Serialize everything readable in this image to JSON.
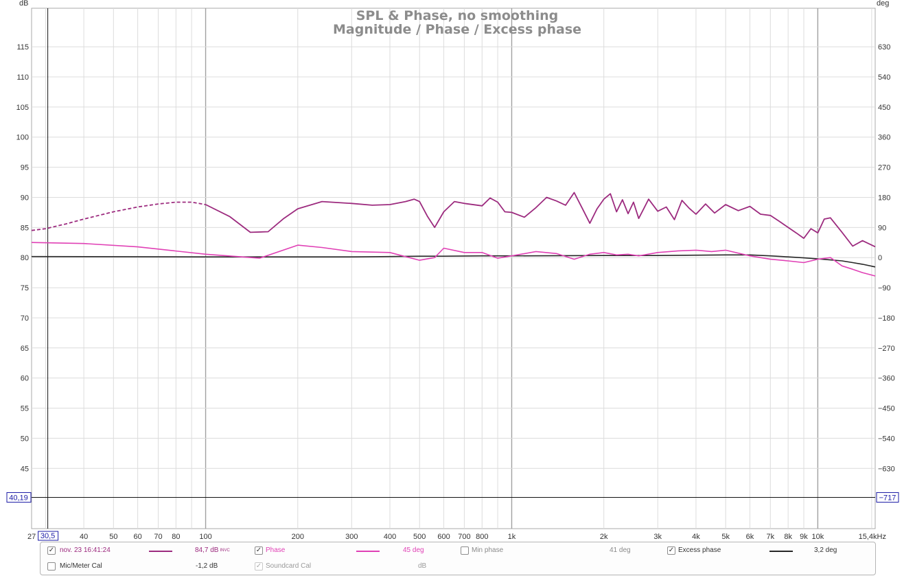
{
  "chart_data": {
    "type": "line",
    "title": "SPL & Phase, no smoothing",
    "subtitle": "Magnitude / Phase / Excess phase",
    "left_unit": "dB",
    "right_unit": "deg",
    "xscale": "log",
    "xlim": [
      27,
      15400
    ],
    "ylim_left": [
      35,
      121.4
    ],
    "ylim_right": [
      -810,
      745
    ],
    "grid": true,
    "x_ticks": [
      {
        "label": "27",
        "value": 27
      },
      {
        "label": "40",
        "value": 40
      },
      {
        "label": "50",
        "value": 50
      },
      {
        "label": "60",
        "value": 60
      },
      {
        "label": "70",
        "value": 70
      },
      {
        "label": "80",
        "value": 80
      },
      {
        "label": "100",
        "value": 100
      },
      {
        "label": "200",
        "value": 200
      },
      {
        "label": "300",
        "value": 300
      },
      {
        "label": "400",
        "value": 400
      },
      {
        "label": "500",
        "value": 500
      },
      {
        "label": "600",
        "value": 600
      },
      {
        "label": "700",
        "value": 700
      },
      {
        "label": "800",
        "value": 800
      },
      {
        "label": "1k",
        "value": 1000
      },
      {
        "label": "2k",
        "value": 2000
      },
      {
        "label": "3k",
        "value": 3000
      },
      {
        "label": "4k",
        "value": 4000
      },
      {
        "label": "5k",
        "value": 5000
      },
      {
        "label": "6k",
        "value": 6000
      },
      {
        "label": "7k",
        "value": 7000
      },
      {
        "label": "8k",
        "value": 8000
      },
      {
        "label": "9k",
        "value": 9000
      },
      {
        "label": "10k",
        "value": 10000
      },
      {
        "label": "15,4kHz",
        "value": 15400
      }
    ],
    "y_left_ticks": [
      45,
      50,
      55,
      60,
      65,
      70,
      75,
      80,
      85,
      90,
      95,
      100,
      105,
      110,
      115
    ],
    "y_right_ticks": [
      {
        "label": "630",
        "value": 630
      },
      {
        "label": "540",
        "value": 540
      },
      {
        "label": "450",
        "value": 450
      },
      {
        "label": "360",
        "value": 360
      },
      {
        "label": "270",
        "value": 270
      },
      {
        "label": "180",
        "value": 180
      },
      {
        "label": "90",
        "value": 90
      },
      {
        "label": "0",
        "value": 0
      },
      {
        "label": "-90",
        "value": -90
      },
      {
        "label": "-180",
        "value": -180
      },
      {
        "label": "-270",
        "value": -270
      },
      {
        "label": "-360",
        "value": -360
      },
      {
        "label": "-450",
        "value": -450
      },
      {
        "label": "-540",
        "value": -540
      },
      {
        "label": "-630",
        "value": -630
      }
    ],
    "cursor": {
      "x": 30.5,
      "x_label": "30,5",
      "y_left_label": "40,19",
      "y_right_label": "-717",
      "y_left_value": 40.19
    },
    "series": [
      {
        "name": "nov. 23 16:41:24",
        "axis": "left",
        "color": "#9c2a7e",
        "dashed_below": 100,
        "x": [
          27,
          30,
          35,
          40,
          50,
          60,
          70,
          80,
          90,
          100,
          120,
          140,
          160,
          180,
          200,
          240,
          300,
          350,
          400,
          450,
          480,
          500,
          530,
          560,
          600,
          650,
          700,
          800,
          850,
          900,
          950,
          1000,
          1100,
          1200,
          1300,
          1400,
          1500,
          1600,
          1700,
          1800,
          1900,
          2000,
          2100,
          2200,
          2300,
          2400,
          2500,
          2600,
          2700,
          2800,
          3000,
          3200,
          3400,
          3600,
          3800,
          4000,
          4300,
          4600,
          5000,
          5500,
          6000,
          6500,
          7000,
          7500,
          8000,
          8500,
          9000,
          9500,
          10000,
          10500,
          11000,
          12000,
          13000,
          14000,
          15400
        ],
        "y": [
          84.5,
          84.8,
          85.6,
          86.4,
          87.6,
          88.4,
          88.9,
          89.2,
          89.2,
          88.8,
          86.8,
          84.2,
          84.3,
          86.5,
          88.1,
          89.3,
          89.0,
          88.7,
          88.8,
          89.3,
          89.7,
          89.3,
          86.9,
          85.0,
          87.6,
          89.3,
          89.0,
          88.6,
          89.9,
          89.2,
          87.6,
          87.5,
          86.7,
          88.3,
          90.0,
          89.4,
          88.7,
          90.8,
          88.2,
          85.7,
          88.1,
          89.7,
          90.6,
          87.6,
          89.6,
          87.3,
          89.2,
          86.5,
          88.1,
          89.7,
          87.7,
          88.4,
          86.3,
          89.5,
          88.2,
          87.2,
          88.9,
          87.4,
          88.8,
          87.8,
          88.5,
          87.2,
          87.0,
          86.0,
          85.0,
          84.1,
          83.2,
          84.8,
          84.1,
          86.4,
          86.6,
          84.2,
          81.9,
          82.8,
          81.8
        ]
      },
      {
        "name": "Phase",
        "axis": "right",
        "color": "#e040b5",
        "x": [
          27,
          40,
          60,
          100,
          150,
          200,
          240,
          300,
          400,
          500,
          560,
          600,
          700,
          800,
          900,
          1000,
          1200,
          1400,
          1600,
          1800,
          2000,
          2200,
          2400,
          2600,
          3000,
          3500,
          4000,
          4500,
          5000,
          6000,
          7000,
          8000,
          9000,
          10000,
          11000,
          12000,
          13000,
          14000,
          15400
        ],
        "y": [
          45,
          42,
          32,
          10,
          -2,
          37,
          30,
          18,
          15,
          -8,
          0,
          28,
          15,
          15,
          -2,
          5,
          18,
          12,
          -5,
          10,
          15,
          8,
          10,
          5,
          15,
          20,
          22,
          18,
          22,
          5,
          -5,
          -10,
          -15,
          -5,
          0,
          -25,
          -35,
          -45,
          -55
        ]
      },
      {
        "name": "Min phase",
        "axis": "right",
        "color": "#9a9a9a",
        "visible": false,
        "x": [],
        "y": []
      },
      {
        "name": "Excess phase",
        "axis": "right",
        "color": "#262626",
        "x": [
          27,
          100,
          200,
          300,
          400,
          500,
          600,
          800,
          1000,
          2000,
          3000,
          4000,
          5000,
          6000,
          7000,
          8000,
          9000,
          10000,
          11000,
          12000,
          13000,
          14000,
          15400
        ],
        "y": [
          3,
          2,
          2,
          2,
          3,
          4,
          4,
          5,
          5,
          6,
          6,
          7,
          8,
          8,
          5,
          2,
          -1,
          -4,
          -7,
          -10,
          -15,
          -20,
          -28
        ]
      }
    ]
  },
  "legend": {
    "row1": [
      {
        "checked": true,
        "label": "nov. 23 16:41:24",
        "color": "#9c2a7e",
        "value": "84,7 dB",
        "suffix": "INVC"
      },
      {
        "checked": true,
        "label": "Phase",
        "color": "#e040b5",
        "value": "45 deg"
      },
      {
        "checked": false,
        "label": "Min phase",
        "color": "#9a9a9a",
        "value": "41 deg"
      },
      {
        "checked": true,
        "label": "Excess phase",
        "color": "#262626",
        "value": "3,2 deg"
      }
    ],
    "row2": [
      {
        "checked": false,
        "label": "Mic/Meter Cal",
        "value": "-1,2 dB"
      },
      {
        "checked": true,
        "label": "Soundcard Cal",
        "value": "dB",
        "dim": true
      }
    ]
  }
}
